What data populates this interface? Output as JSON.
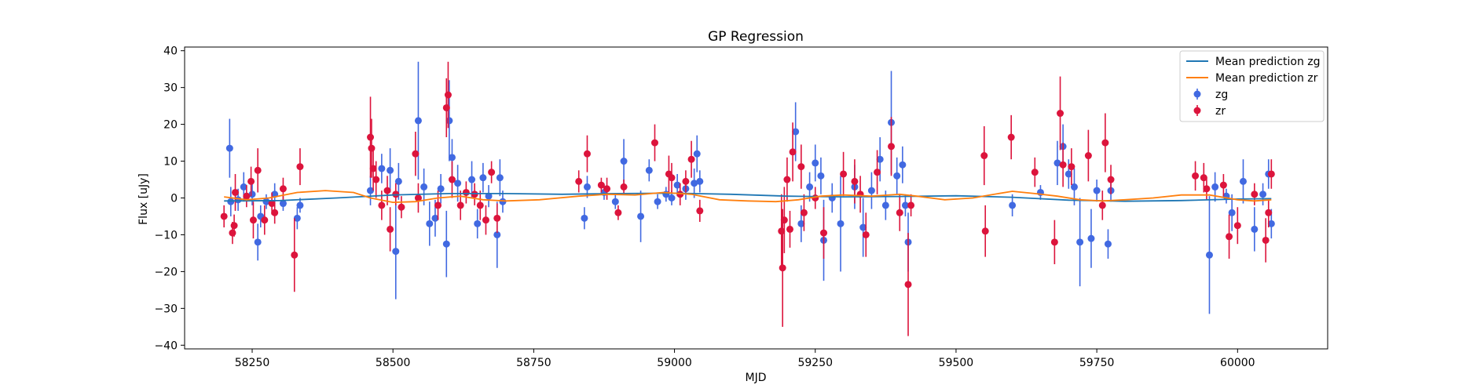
{
  "chart_data": {
    "type": "scatter",
    "title": "GP Regression",
    "xlabel": "MJD",
    "ylabel": "Flux [uJy]",
    "xlim": [
      58130,
      60160
    ],
    "ylim": [
      -41,
      41
    ],
    "xticks": [
      58250,
      58500,
      58750,
      59000,
      59250,
      59500,
      59750,
      60000
    ],
    "yticks": [
      -40,
      -30,
      -20,
      -10,
      0,
      10,
      20,
      30,
      40
    ],
    "grid": false,
    "legend_position": "top-right",
    "legend": [
      {
        "label": "Mean prediction zg",
        "kind": "line",
        "color": "#1f77b4"
      },
      {
        "label": "Mean prediction zr",
        "kind": "line",
        "color": "#ff7f0e"
      },
      {
        "label": "zg",
        "kind": "errorbar",
        "color": "#4169e1"
      },
      {
        "label": "zr",
        "kind": "errorbar",
        "color": "#dc143c"
      }
    ],
    "lines": [
      {
        "name": "Mean prediction zg",
        "color": "#1f77b4",
        "x": [
          58200,
          58300,
          58400,
          58450,
          58500,
          58600,
          58700,
          58800,
          58900,
          59000,
          59100,
          59200,
          59300,
          59400,
          59500,
          59600,
          59700,
          59800,
          59900,
          60000,
          60060
        ],
        "y": [
          -0.8,
          -0.7,
          0.0,
          0.4,
          0.8,
          1.2,
          1.2,
          1.0,
          1.2,
          1.3,
          1.0,
          0.5,
          0.3,
          0.4,
          0.6,
          0.2,
          -0.6,
          -0.9,
          -0.7,
          -0.3,
          -0.2
        ]
      },
      {
        "name": "Mean prediction zr",
        "color": "#ff7f0e",
        "x": [
          58200,
          58240,
          58280,
          58330,
          58380,
          58430,
          58460,
          58500,
          58540,
          58580,
          58620,
          58660,
          58700,
          58760,
          58830,
          58880,
          58930,
          58980,
          59030,
          59080,
          59130,
          59180,
          59220,
          59260,
          59300,
          59350,
          59400,
          59430,
          59480,
          59530,
          59560,
          59600,
          59640,
          59680,
          59720,
          59760,
          59800,
          59850,
          59900,
          59950,
          60000,
          60030,
          60060
        ],
        "y": [
          0.3,
          -0.5,
          0.0,
          1.5,
          2.0,
          1.5,
          0.0,
          -1.2,
          -1.0,
          0.0,
          0.5,
          -0.5,
          -0.8,
          -0.5,
          0.5,
          1.0,
          0.8,
          1.5,
          1.0,
          -0.5,
          -0.8,
          -1.0,
          -0.5,
          0.5,
          0.8,
          0.5,
          1.0,
          0.5,
          -0.5,
          0.0,
          0.8,
          1.8,
          1.2,
          0.5,
          -0.5,
          -0.8,
          -0.5,
          0.0,
          0.8,
          0.8,
          -0.5,
          -0.8,
          -0.5
        ]
      }
    ],
    "series": [
      {
        "name": "zg",
        "color": "#4169e1",
        "points": [
          [
            58210,
            13.5,
            8
          ],
          [
            58212,
            -1,
            4
          ],
          [
            58225,
            -0.5,
            3
          ],
          [
            58235,
            3,
            4
          ],
          [
            58250,
            1,
            3
          ],
          [
            58260,
            -12,
            5
          ],
          [
            58265,
            -5,
            3
          ],
          [
            58275,
            -1,
            2
          ],
          [
            58290,
            1,
            3
          ],
          [
            58305,
            -1.5,
            2
          ],
          [
            58330,
            -5.5,
            3
          ],
          [
            58335,
            -2,
            2
          ],
          [
            58460,
            2,
            4
          ],
          [
            58480,
            8,
            4
          ],
          [
            58495,
            7.5,
            6
          ],
          [
            58505,
            -14.5,
            13
          ],
          [
            58510,
            4.5,
            5
          ],
          [
            58545,
            21,
            16
          ],
          [
            58555,
            3,
            5
          ],
          [
            58565,
            -7,
            6
          ],
          [
            58575,
            -5.5,
            5
          ],
          [
            58585,
            2.5,
            4
          ],
          [
            58595,
            -12.5,
            9
          ],
          [
            58600,
            21,
            11
          ],
          [
            58605,
            11,
            5
          ],
          [
            58615,
            4,
            5
          ],
          [
            58640,
            5,
            5
          ],
          [
            58650,
            -7,
            4
          ],
          [
            58660,
            5.5,
            4
          ],
          [
            58670,
            0.5,
            3
          ],
          [
            58685,
            -10,
            9
          ],
          [
            58690,
            5.5,
            5
          ],
          [
            58695,
            -1,
            3
          ],
          [
            58840,
            -5.5,
            3
          ],
          [
            58845,
            3,
            3
          ],
          [
            58875,
            1.5,
            2
          ],
          [
            58895,
            -1,
            2
          ],
          [
            58910,
            10,
            6
          ],
          [
            58940,
            -5,
            7
          ],
          [
            58955,
            7.5,
            3
          ],
          [
            58970,
            -1,
            2
          ],
          [
            58985,
            1,
            2
          ],
          [
            58995,
            0,
            2
          ],
          [
            59005,
            3.5,
            3
          ],
          [
            59020,
            2.5,
            3
          ],
          [
            59035,
            4,
            4
          ],
          [
            59040,
            12,
            5
          ],
          [
            59045,
            4.5,
            3
          ],
          [
            59215,
            18,
            8
          ],
          [
            59225,
            -7,
            5
          ],
          [
            59240,
            3,
            4
          ],
          [
            59250,
            9.5,
            5
          ],
          [
            59260,
            6,
            5
          ],
          [
            59265,
            -11.5,
            11
          ],
          [
            59280,
            0,
            4
          ],
          [
            59295,
            -7,
            13
          ],
          [
            59320,
            3,
            6
          ],
          [
            59335,
            -8,
            8
          ],
          [
            59350,
            2,
            5
          ],
          [
            59365,
            10.5,
            6
          ],
          [
            59375,
            -2,
            4
          ],
          [
            59385,
            20.5,
            14
          ],
          [
            59395,
            6,
            5
          ],
          [
            59405,
            9,
            5
          ],
          [
            59410,
            -2,
            3
          ],
          [
            59415,
            -12,
            8
          ],
          [
            59600,
            -2,
            3
          ],
          [
            59650,
            1.5,
            2
          ],
          [
            59680,
            9.5,
            6
          ],
          [
            59690,
            14,
            6
          ],
          [
            59700,
            6.5,
            4
          ],
          [
            59710,
            3,
            5
          ],
          [
            59720,
            -12,
            12
          ],
          [
            59740,
            -11,
            8
          ],
          [
            59750,
            2,
            3
          ],
          [
            59770,
            -12.5,
            4
          ],
          [
            59775,
            2,
            3
          ],
          [
            59950,
            -15.5,
            16
          ],
          [
            59960,
            3,
            4
          ],
          [
            59980,
            0.5,
            2
          ],
          [
            59990,
            -4,
            5
          ],
          [
            60010,
            4.5,
            6
          ],
          [
            60030,
            -8.5,
            6
          ],
          [
            60045,
            1,
            3
          ],
          [
            60055,
            6.5,
            4
          ],
          [
            60060,
            -7,
            4
          ]
        ]
      },
      {
        "name": "zr",
        "color": "#dc143c",
        "points": [
          [
            58200,
            -5,
            3
          ],
          [
            58215,
            -9.5,
            3
          ],
          [
            58218,
            -7.5,
            3
          ],
          [
            58220,
            1.5,
            5
          ],
          [
            58240,
            0.5,
            3
          ],
          [
            58248,
            4.5,
            4
          ],
          [
            58252,
            -6,
            5
          ],
          [
            58260,
            7.5,
            6
          ],
          [
            58272,
            -6,
            4
          ],
          [
            58285,
            -1.5,
            3
          ],
          [
            58290,
            -4,
            3
          ],
          [
            58305,
            2.5,
            3
          ],
          [
            58325,
            -15.5,
            10
          ],
          [
            58335,
            8.5,
            5
          ],
          [
            58460,
            16.5,
            11
          ],
          [
            58462,
            13.5,
            8
          ],
          [
            58465,
            8,
            6
          ],
          [
            58470,
            5,
            5
          ],
          [
            58480,
            -2,
            4
          ],
          [
            58490,
            2,
            4
          ],
          [
            58495,
            -8.5,
            6
          ],
          [
            58505,
            1,
            3
          ],
          [
            58515,
            -2.5,
            3
          ],
          [
            58540,
            12,
            6
          ],
          [
            58545,
            0,
            4
          ],
          [
            58580,
            -2,
            4
          ],
          [
            58595,
            24.5,
            8
          ],
          [
            58598,
            28,
            9
          ],
          [
            58605,
            5,
            5
          ],
          [
            58620,
            -2,
            4
          ],
          [
            58630,
            1.5,
            3
          ],
          [
            58645,
            1,
            3
          ],
          [
            58655,
            -2,
            4
          ],
          [
            58665,
            -6,
            4
          ],
          [
            58675,
            7,
            3
          ],
          [
            58685,
            -5.5,
            4
          ],
          [
            58830,
            4.5,
            3
          ],
          [
            58845,
            12,
            5
          ],
          [
            58870,
            3.5,
            2
          ],
          [
            58880,
            2.5,
            3
          ],
          [
            58900,
            -4,
            2
          ],
          [
            58910,
            3,
            2
          ],
          [
            58965,
            15,
            5
          ],
          [
            58990,
            6.5,
            5
          ],
          [
            58995,
            5.5,
            4
          ],
          [
            59010,
            1,
            3
          ],
          [
            59020,
            4.5,
            3
          ],
          [
            59030,
            10.5,
            5
          ],
          [
            59045,
            -3.5,
            3
          ],
          [
            59190,
            -9,
            10
          ],
          [
            59192,
            -19,
            16
          ],
          [
            59195,
            -6,
            9
          ],
          [
            59200,
            5,
            6
          ],
          [
            59205,
            -8.5,
            5
          ],
          [
            59210,
            12.5,
            8
          ],
          [
            59225,
            8.5,
            6
          ],
          [
            59230,
            -4,
            5
          ],
          [
            59250,
            0,
            3
          ],
          [
            59265,
            -9.5,
            7
          ],
          [
            59300,
            6.5,
            6
          ],
          [
            59320,
            4.5,
            6
          ],
          [
            59330,
            1,
            5
          ],
          [
            59340,
            -10,
            6
          ],
          [
            59360,
            7,
            6
          ],
          [
            59385,
            14,
            8
          ],
          [
            59400,
            -4,
            5
          ],
          [
            59415,
            -23.5,
            14
          ],
          [
            59420,
            -2,
            3
          ],
          [
            59550,
            11.5,
            8
          ],
          [
            59552,
            -9,
            7
          ],
          [
            59598,
            16.5,
            6
          ],
          [
            59640,
            7,
            4
          ],
          [
            59675,
            -12,
            6
          ],
          [
            59685,
            23,
            10
          ],
          [
            59690,
            9,
            6
          ],
          [
            59705,
            8.5,
            5
          ],
          [
            59735,
            11.5,
            7
          ],
          [
            59760,
            -2,
            4
          ],
          [
            59765,
            15,
            8
          ],
          [
            59775,
            5,
            4
          ],
          [
            59925,
            6,
            4
          ],
          [
            59940,
            5.5,
            4
          ],
          [
            59945,
            2.5,
            3
          ],
          [
            59975,
            3.5,
            3
          ],
          [
            59985,
            -10.5,
            6
          ],
          [
            60000,
            -7.5,
            5
          ],
          [
            60030,
            1,
            3
          ],
          [
            60050,
            -11.5,
            6
          ],
          [
            60055,
            -4,
            4
          ],
          [
            60060,
            6.5,
            4
          ]
        ]
      }
    ]
  }
}
